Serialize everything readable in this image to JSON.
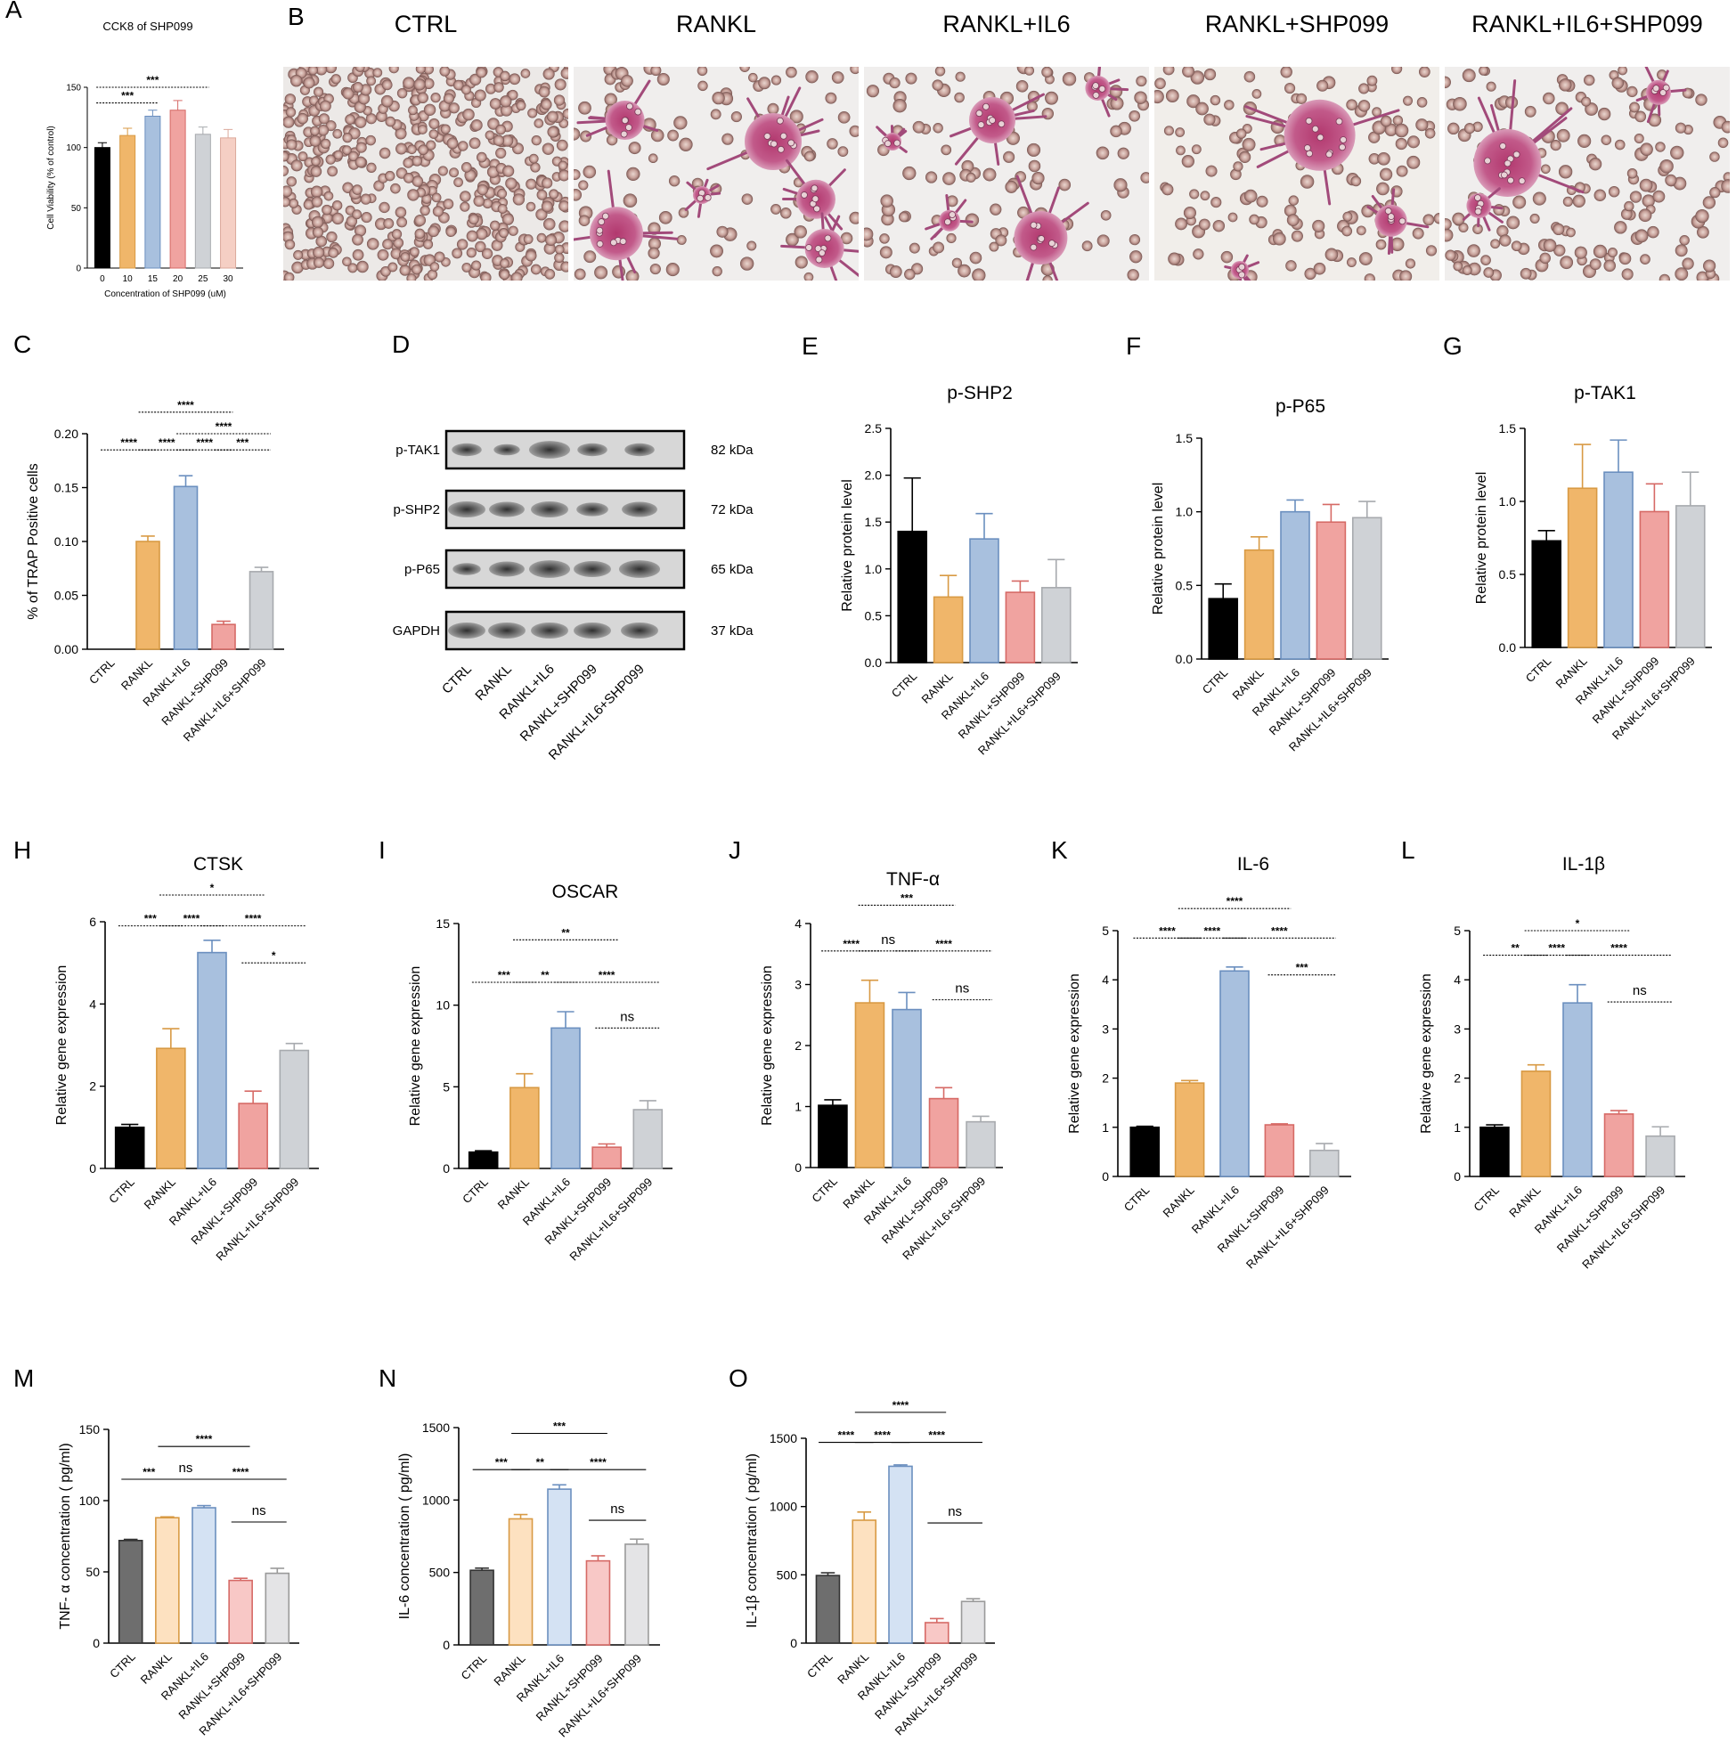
{
  "panels": [
    {
      "id": "A",
      "label": "A",
      "type": "bar",
      "small": true,
      "title": "CCK8 of SHP099",
      "xlabel": "Concentration of  SHP099 (uM)",
      "ylabel": "Cell Viability (% of control)",
      "ymax": 150,
      "yticks": [
        0,
        50,
        100,
        150
      ],
      "categories": [
        "0",
        "10",
        "15",
        "20",
        "25",
        "30"
      ],
      "values": [
        100,
        110,
        126,
        131,
        111,
        108
      ],
      "errors": [
        4,
        6,
        5,
        8,
        6,
        7
      ],
      "fills": [
        "#000000",
        "#f0b66a",
        "#a8c0de",
        "#f0a3a0",
        "#cfd2d6",
        "#f5cfc4"
      ],
      "strokes": [
        "#000000",
        "#d89a44",
        "#6b8fbf",
        "#d66a66",
        "#a7aaae",
        "#dba99b"
      ],
      "sig": [
        {
          "from": 0,
          "to": 4,
          "lvl": 150,
          "text": "***"
        },
        {
          "from": 0,
          "to": 2,
          "lvl": 137,
          "text": "***"
        }
      ]
    },
    {
      "id": "C",
      "label": "C",
      "type": "bar",
      "ylabel": "% of TRAP Positive  cells",
      "ymax": 0.2,
      "yticks": [
        "0.00",
        "0.05",
        "0.10",
        "0.15",
        "0.20"
      ],
      "categories": [
        "CTRL",
        "RANKL",
        "RANKL+IL6",
        "RANKL+SHP099",
        "RANKL+IL6+SHP099"
      ],
      "values": [
        0,
        0.1,
        0.151,
        0.023,
        0.072
      ],
      "errors": [
        0,
        0.005,
        0.01,
        0.003,
        0.004
      ],
      "sig": [
        {
          "from": 0,
          "to": 1,
          "lvl": 0.185,
          "text": "****"
        },
        {
          "from": 1,
          "to": 2,
          "lvl": 0.185,
          "text": "****"
        },
        {
          "from": 1,
          "to": 3,
          "lvl": 0.22,
          "text": "****"
        },
        {
          "from": 2,
          "to": 3,
          "lvl": 0.185,
          "text": "****"
        },
        {
          "from": 2,
          "to": 4,
          "lvl": 0.2,
          "text": "****"
        },
        {
          "from": 3,
          "to": 4,
          "lvl": 0.185,
          "text": "***"
        }
      ]
    },
    {
      "id": "E",
      "label": "E",
      "type": "bar",
      "title": "p-SHP2",
      "ylabel": "Relative  protein level",
      "ymax": 2.5,
      "yticks": [
        "0.0",
        "0.5",
        "1.0",
        "1.5",
        "2.0",
        "2.5"
      ],
      "categories": [
        "CTRL",
        "RANKL",
        "RANKL+IL6",
        "RANKL+SHP099",
        "RANKL+IL6+SHP099"
      ],
      "values": [
        1.4,
        0.7,
        1.32,
        0.75,
        0.8
      ],
      "errors": [
        0.57,
        0.23,
        0.27,
        0.12,
        0.3
      ],
      "sig": []
    },
    {
      "id": "F",
      "label": "F",
      "type": "bar",
      "title": "p-P65",
      "ylabel": "Relative  protein level",
      "ymax": 1.5,
      "yticks": [
        "0.0",
        "0.5",
        "1.0",
        "1.5"
      ],
      "categories": [
        "CTRL",
        "RANKL",
        "RANKL+IL6",
        "RANKL+SHP099",
        "RANKL+IL6+SHP099"
      ],
      "values": [
        0.41,
        0.74,
        1.0,
        0.93,
        0.96
      ],
      "errors": [
        0.1,
        0.09,
        0.08,
        0.12,
        0.11
      ],
      "sig": []
    },
    {
      "id": "G",
      "label": "G",
      "type": "bar",
      "title": "p-TAK1",
      "ylabel": "Relative  protein level",
      "ymax": 1.5,
      "yticks": [
        "0.0",
        "0.5",
        "1.0",
        "1.5"
      ],
      "categories": [
        "CTRL",
        "RANKL",
        "RANKL+IL6",
        "RANKL+SHP099",
        "RANKL+IL6+SHP099"
      ],
      "values": [
        0.73,
        1.09,
        1.2,
        0.93,
        0.97
      ],
      "errors": [
        0.07,
        0.3,
        0.22,
        0.19,
        0.23
      ],
      "sig": []
    },
    {
      "id": "H",
      "label": "H",
      "type": "bar",
      "title": "CTSK",
      "ylabel": "Relative  gene  expression",
      "ymax": 6,
      "yticks": [
        "0",
        "2",
        "4",
        "6"
      ],
      "categories": [
        "CTRL",
        "RANKL",
        "RANKL+IL6",
        "RANKL+SHP099",
        "RANKL+IL6+SHP099"
      ],
      "values": [
        1.0,
        2.92,
        5.25,
        1.58,
        2.87
      ],
      "errors": [
        0.07,
        0.48,
        0.3,
        0.3,
        0.17
      ],
      "sig": [
        {
          "from": 0,
          "to": 1,
          "lvl": 5.9,
          "text": "***"
        },
        {
          "from": 1,
          "to": 2,
          "lvl": 5.9,
          "text": "****"
        },
        {
          "from": 1,
          "to": 3,
          "lvl": 6.65,
          "text": "*"
        },
        {
          "from": 2,
          "to": 4,
          "lvl": 5.9,
          "text": "****"
        },
        {
          "from": 3,
          "to": 4,
          "lvl": 5.0,
          "text": "*"
        }
      ]
    },
    {
      "id": "I",
      "label": "I",
      "type": "bar",
      "title": "OSCAR",
      "ylabel": "Relative  gene  expression",
      "ymax": 15,
      "yticks": [
        "0",
        "5",
        "10",
        "15"
      ],
      "categories": [
        "CTRL",
        "RANKL",
        "RANKL+IL6",
        "RANKL+SHP099",
        "RANKL+IL6+SHP099"
      ],
      "values": [
        1.0,
        4.95,
        8.6,
        1.3,
        3.6
      ],
      "errors": [
        0.08,
        0.85,
        1.0,
        0.2,
        0.55
      ],
      "sig": [
        {
          "from": 0,
          "to": 1,
          "lvl": 11.4,
          "text": "***"
        },
        {
          "from": 1,
          "to": 2,
          "lvl": 11.4,
          "text": "**"
        },
        {
          "from": 1,
          "to": 3,
          "lvl": 14.0,
          "text": "**"
        },
        {
          "from": 2,
          "to": 4,
          "lvl": 11.4,
          "text": "****"
        },
        {
          "from": 3,
          "to": 4,
          "lvl": 8.6,
          "text": "ns"
        }
      ]
    },
    {
      "id": "J",
      "label": "J",
      "type": "bar",
      "title": "TNF-α",
      "ylabel": "Relative  gene  expression",
      "ymax": 4,
      "yticks": [
        "0",
        "1",
        "2",
        "3",
        "4"
      ],
      "categories": [
        "CTRL",
        "RANKL",
        "RANKL+IL6",
        "RANKL+SHP099",
        "RANKL+IL6+SHP099"
      ],
      "values": [
        1.02,
        2.7,
        2.59,
        1.13,
        0.75
      ],
      "errors": [
        0.09,
        0.37,
        0.28,
        0.18,
        0.09
      ],
      "sig": [
        {
          "from": 0,
          "to": 1,
          "lvl": 3.55,
          "text": "****"
        },
        {
          "from": 1,
          "to": 2,
          "lvl": 3.55,
          "text": "ns"
        },
        {
          "from": 1,
          "to": 3,
          "lvl": 4.3,
          "text": "***"
        },
        {
          "from": 2,
          "to": 4,
          "lvl": 3.55,
          "text": "****"
        },
        {
          "from": 3,
          "to": 4,
          "lvl": 2.75,
          "text": "ns"
        }
      ]
    },
    {
      "id": "K",
      "label": "K",
      "type": "bar",
      "title": "IL-6",
      "ylabel": "Relative  gene  expression",
      "ymax": 5,
      "yticks": [
        "0",
        "1",
        "2",
        "3",
        "4",
        "5"
      ],
      "categories": [
        "CTRL",
        "RANKL",
        "RANKL+IL6",
        "RANKL+SHP099",
        "RANKL+IL6+SHP099"
      ],
      "values": [
        1.0,
        1.9,
        4.18,
        1.05,
        0.53
      ],
      "errors": [
        0.02,
        0.05,
        0.08,
        0.02,
        0.14
      ],
      "sig": [
        {
          "from": 0,
          "to": 1,
          "lvl": 4.85,
          "text": "****"
        },
        {
          "from": 1,
          "to": 2,
          "lvl": 4.85,
          "text": "****"
        },
        {
          "from": 1,
          "to": 3,
          "lvl": 5.45,
          "text": "****"
        },
        {
          "from": 2,
          "to": 4,
          "lvl": 4.85,
          "text": "****"
        },
        {
          "from": 3,
          "to": 4,
          "lvl": 4.1,
          "text": "***"
        }
      ]
    },
    {
      "id": "L",
      "label": "L",
      "type": "bar",
      "title": "IL-1β",
      "ylabel": "Relative  gene  expression",
      "ymax": 5,
      "yticks": [
        "0",
        "1",
        "2",
        "3",
        "4",
        "5"
      ],
      "categories": [
        "CTRL",
        "RANKL",
        "RANKL+IL6",
        "RANKL+SHP099",
        "RANKL+IL6+SHP099"
      ],
      "values": [
        1.0,
        2.14,
        3.53,
        1.27,
        0.82
      ],
      "errors": [
        0.05,
        0.13,
        0.37,
        0.07,
        0.19
      ],
      "sig": [
        {
          "from": 0,
          "to": 1,
          "lvl": 4.5,
          "text": "**"
        },
        {
          "from": 1,
          "to": 2,
          "lvl": 4.5,
          "text": "****"
        },
        {
          "from": 1,
          "to": 3,
          "lvl": 5.0,
          "text": "*"
        },
        {
          "from": 2,
          "to": 4,
          "lvl": 4.5,
          "text": "****"
        },
        {
          "from": 3,
          "to": 4,
          "lvl": 3.55,
          "text": "ns"
        }
      ]
    },
    {
      "id": "M",
      "label": "M",
      "type": "bar",
      "light": true,
      "ylabel": "TNF- α concentration  ( pg/ml)",
      "ymax": 150,
      "yticks": [
        "0",
        "50",
        "100",
        "150"
      ],
      "categories": [
        "CTRL",
        "RANKL",
        "RANKL+IL6",
        "RANKL+SHP099",
        "RANKL+IL6+SHP099"
      ],
      "values": [
        72,
        88,
        95,
        44,
        49
      ],
      "errors": [
        0.8,
        0.6,
        1.5,
        1.5,
        3.5
      ],
      "sig": [
        {
          "from": 0,
          "to": 1,
          "lvl": 115,
          "text": "***"
        },
        {
          "from": 1,
          "to": 2,
          "lvl": 115,
          "text": "ns"
        },
        {
          "from": 1,
          "to": 3,
          "lvl": 138,
          "text": "****"
        },
        {
          "from": 2,
          "to": 4,
          "lvl": 115,
          "text": "****"
        },
        {
          "from": 3,
          "to": 4,
          "lvl": 85,
          "text": "ns"
        }
      ]
    },
    {
      "id": "N",
      "label": "N",
      "type": "bar",
      "light": true,
      "ylabel": "IL-6 concentration ( pg/ml)",
      "ymax": 1500,
      "yticks": [
        "0",
        "500",
        "1000",
        "1500"
      ],
      "categories": [
        "CTRL",
        "RANKL",
        "RANKL+IL6",
        "RANKL+SHP099",
        "RANKL+IL6+SHP099"
      ],
      "values": [
        515,
        870,
        1075,
        580,
        695
      ],
      "errors": [
        15,
        30,
        30,
        35,
        35
      ],
      "sig": [
        {
          "from": 0,
          "to": 1,
          "lvl": 1210,
          "text": "***"
        },
        {
          "from": 1,
          "to": 2,
          "lvl": 1210,
          "text": "**"
        },
        {
          "from": 1,
          "to": 3,
          "lvl": 1460,
          "text": "***"
        },
        {
          "from": 2,
          "to": 4,
          "lvl": 1210,
          "text": "****"
        },
        {
          "from": 3,
          "to": 4,
          "lvl": 860,
          "text": "ns"
        }
      ]
    },
    {
      "id": "O",
      "label": "O",
      "type": "bar",
      "light": true,
      "ylabel": "IL-1β concentration ( pg/ml)",
      "ymax": 1500,
      "yticks": [
        "0",
        "500",
        "1000",
        "1500"
      ],
      "categories": [
        "CTRL",
        "RANKL",
        "RANKL+IL6",
        "RANKL+SHP099",
        "RANKL+IL6+SHP099"
      ],
      "values": [
        495,
        900,
        1295,
        150,
        305
      ],
      "errors": [
        20,
        60,
        10,
        30,
        20
      ],
      "sig": [
        {
          "from": 0,
          "to": 1,
          "lvl": 1470,
          "text": "****"
        },
        {
          "from": 1,
          "to": 2,
          "lvl": 1470,
          "text": "****"
        },
        {
          "from": 1,
          "to": 3,
          "lvl": 1690,
          "text": "****"
        },
        {
          "from": 2,
          "to": 4,
          "lvl": 1470,
          "text": "****"
        },
        {
          "from": 3,
          "to": 4,
          "lvl": 880,
          "text": "ns"
        }
      ]
    }
  ],
  "colors": {
    "dark": [
      "#000000",
      "#f0b66a",
      "#a8c0de",
      "#f0a3a0",
      "#cfd2d6"
    ],
    "dark_strokes": [
      "#000000",
      "#d89a44",
      "#6b8fbf",
      "#d66a66",
      "#a7aaae"
    ],
    "light": [
      "#6e6e6e",
      "#fde1c0",
      "#d4e2f3",
      "#f8c8c6",
      "#e4e4e6"
    ],
    "light_strokes": [
      "#333333",
      "#d89a44",
      "#6b8fbf",
      "#d66a66",
      "#9a9a9a"
    ]
  },
  "microscopy": {
    "label": "B",
    "images": [
      "CTRL",
      "RANKL",
      "RANKL+IL6",
      "RANKL+SHP099",
      "RANKL+IL6+SHP099"
    ]
  },
  "western": {
    "label": "D",
    "proteins": [
      {
        "name": "p-TAK1",
        "kda": "82 kDa"
      },
      {
        "name": "p-SHP2",
        "kda": "72 kDa"
      },
      {
        "name": "p-P65",
        "kda": "65 kDa"
      },
      {
        "name": "GAPDH",
        "kda": "37 kDa"
      }
    ],
    "lanes": [
      "CTRL",
      "RANKL",
      "RANKL+IL6",
      "RANKL+SHP099",
      "RANKL+IL6+SHP099"
    ]
  }
}
